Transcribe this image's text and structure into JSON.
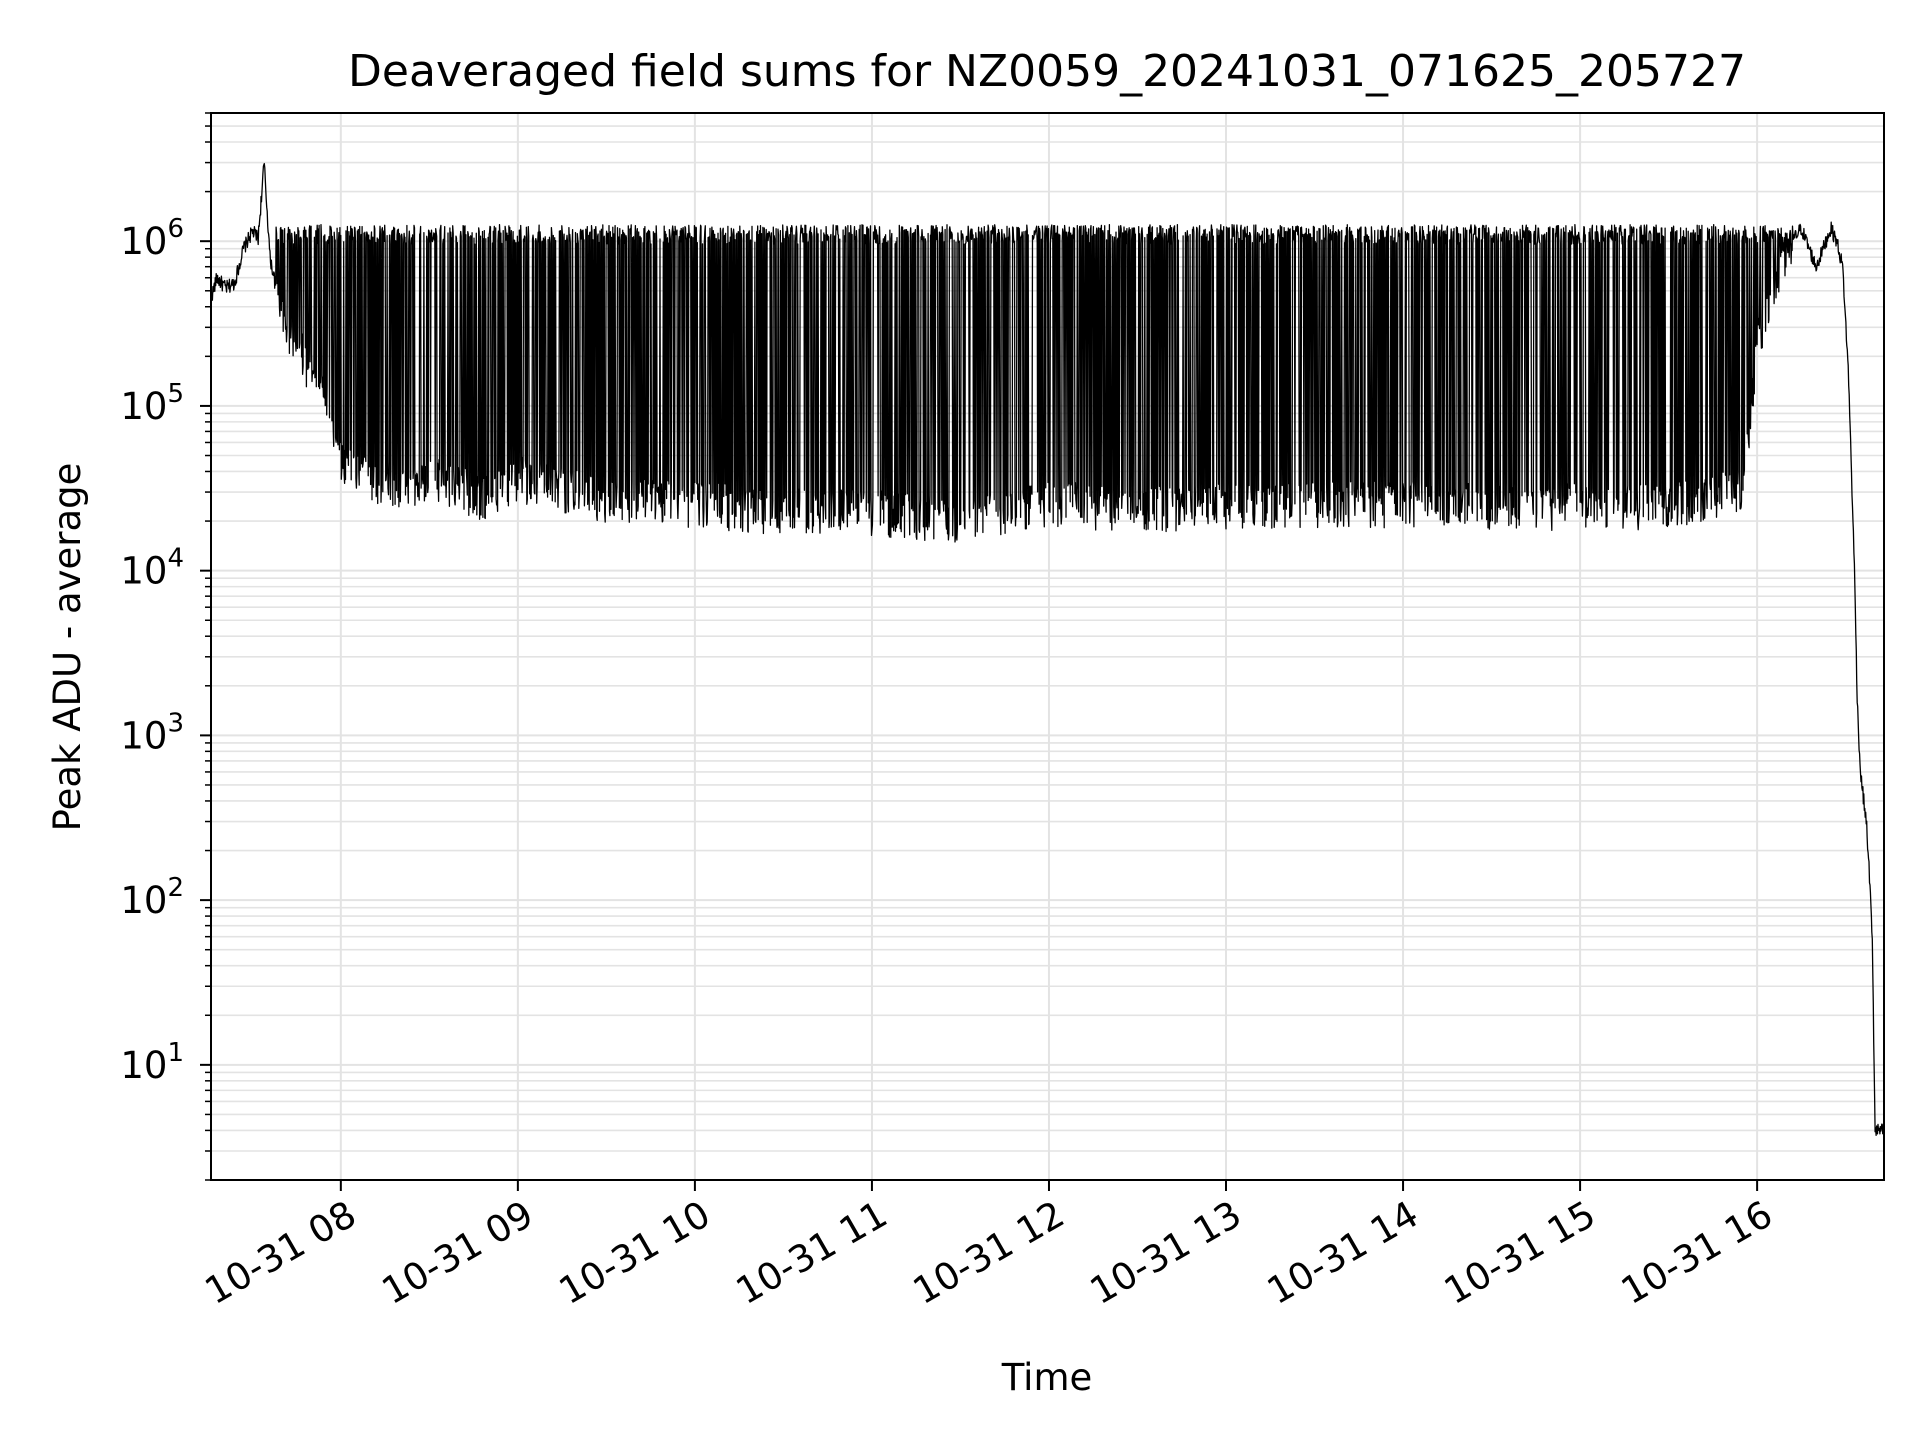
{
  "chart_data": {
    "type": "line",
    "title": "Deaveraged field sums for NZ0059_20241031_071625_205727",
    "xlabel": "Time",
    "ylabel": "Peak ADU - average",
    "yscale": "log",
    "xlim": [
      "2024-10-31 07:16",
      "2024-10-31 16:43"
    ],
    "ylim": [
      2,
      6000000
    ],
    "grid": true,
    "x_ticks": [
      {
        "label": "10-31 08",
        "time": "2024-10-31 08:00"
      },
      {
        "label": "10-31 09",
        "time": "2024-10-31 09:00"
      },
      {
        "label": "10-31 10",
        "time": "2024-10-31 10:00"
      },
      {
        "label": "10-31 11",
        "time": "2024-10-31 11:00"
      },
      {
        "label": "10-31 12",
        "time": "2024-10-31 12:00"
      },
      {
        "label": "10-31 13",
        "time": "2024-10-31 13:00"
      },
      {
        "label": "10-31 14",
        "time": "2024-10-31 14:00"
      },
      {
        "label": "10-31 15",
        "time": "2024-10-31 15:00"
      },
      {
        "label": "10-31 16",
        "time": "2024-10-31 16:00"
      }
    ],
    "y_ticks": [
      {
        "base": "10",
        "exp": "1",
        "value": 10
      },
      {
        "base": "10",
        "exp": "2",
        "value": 100
      },
      {
        "base": "10",
        "exp": "3",
        "value": 1000
      },
      {
        "base": "10",
        "exp": "4",
        "value": 10000
      },
      {
        "base": "10",
        "exp": "5",
        "value": 100000
      },
      {
        "base": "10",
        "exp": "6",
        "value": 1000000
      }
    ],
    "line_color": "#000000",
    "grid_color": "#e3e3e3",
    "series": [
      {
        "points": [
          [
            "2024-10-31 07:16",
            450000
          ],
          [
            "2024-10-31 07:18",
            600000
          ],
          [
            "2024-10-31 07:21",
            520000
          ],
          [
            "2024-10-31 07:24",
            560000
          ],
          [
            "2024-10-31 07:27",
            900000
          ],
          [
            "2024-10-31 07:30",
            1150000
          ],
          [
            "2024-10-31 07:32",
            1050000
          ],
          [
            "2024-10-31 07:34",
            3000000
          ],
          [
            "2024-10-31 07:36",
            800000
          ],
          [
            "2024-10-31 07:40",
            350000
          ],
          [
            "2024-10-31 07:45",
            250000
          ],
          [
            "2024-10-31 07:50",
            180000
          ],
          [
            "2024-10-31 07:55",
            120000
          ],
          [
            "2024-10-31 08:00",
            50000
          ],
          [
            "2024-10-31 08:10",
            40000
          ],
          [
            "2024-10-31 08:20",
            35000
          ],
          [
            "2024-10-31 08:30",
            40000
          ],
          [
            "2024-10-31 08:40",
            35000
          ],
          [
            "2024-10-31 08:50",
            30000
          ],
          [
            "2024-10-31 09:00",
            40000
          ],
          [
            "2024-10-31 09:30",
            30000
          ],
          [
            "2024-10-31 10:00",
            28000
          ],
          [
            "2024-10-31 10:30",
            25000
          ],
          [
            "2024-10-31 11:00",
            25000
          ],
          [
            "2024-10-31 11:30",
            22000
          ],
          [
            "2024-10-31 12:00",
            28000
          ],
          [
            "2024-10-31 12:30",
            26000
          ],
          [
            "2024-10-31 13:00",
            27000
          ],
          [
            "2024-10-31 13:30",
            28000
          ],
          [
            "2024-10-31 14:00",
            28000
          ],
          [
            "2024-10-31 14:30",
            27000
          ],
          [
            "2024-10-31 15:00",
            27000
          ],
          [
            "2024-10-31 15:30",
            27000
          ],
          [
            "2024-10-31 15:55",
            35000
          ],
          [
            "2024-10-31 16:00",
            250000
          ],
          [
            "2024-10-31 16:05",
            500000
          ],
          [
            "2024-10-31 16:10",
            900000
          ],
          [
            "2024-10-31 16:15",
            1200000
          ],
          [
            "2024-10-31 16:20",
            700000
          ],
          [
            "2024-10-31 16:25",
            1200000
          ],
          [
            "2024-10-31 16:27",
            1000000
          ],
          [
            "2024-10-31 16:29",
            700000
          ],
          [
            "2024-10-31 16:31",
            150000
          ],
          [
            "2024-10-31 16:33",
            10000
          ],
          [
            "2024-10-31 16:34",
            1500
          ],
          [
            "2024-10-31 16:35",
            600
          ],
          [
            "2024-10-31 16:37",
            300
          ],
          [
            "2024-10-31 16:38",
            150
          ],
          [
            "2024-10-31 16:39",
            60
          ],
          [
            "2024-10-31 16:40",
            4
          ],
          [
            "2024-10-31 16:43",
            4
          ]
        ],
        "envelope": {
          "from": "2024-10-31 07:38",
          "to": "2024-10-31 16:12",
          "upper": 1200000,
          "lower": 25000
        }
      }
    ]
  }
}
